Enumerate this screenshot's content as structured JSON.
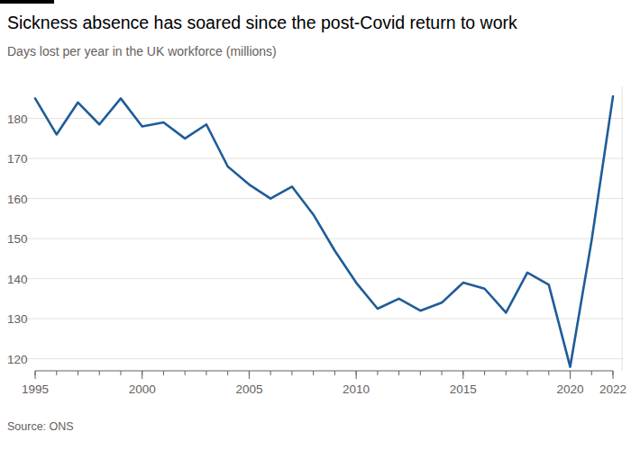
{
  "chart_data": {
    "type": "line",
    "title": "Sickness absence has soared since the post-Covid return to work",
    "subtitle": "Days lost per year in the UK workforce (millions)",
    "source": "Source: ONS",
    "x": [
      1995,
      1996,
      1997,
      1998,
      1999,
      2000,
      2001,
      2002,
      2003,
      2004,
      2005,
      2006,
      2007,
      2008,
      2009,
      2010,
      2011,
      2012,
      2013,
      2014,
      2015,
      2016,
      2017,
      2018,
      2019,
      2020,
      2021,
      2022
    ],
    "series": [
      {
        "name": "Days lost",
        "color": "#1f5c99",
        "values": [
          185,
          176,
          184,
          178.5,
          185,
          178,
          179,
          175,
          178.5,
          168,
          163.5,
          160,
          163,
          156,
          147,
          139,
          132.5,
          135,
          132,
          134,
          139,
          137.5,
          131.5,
          141.5,
          138.5,
          118,
          149.5,
          185.5
        ]
      }
    ],
    "xlim": [
      1995,
      2022
    ],
    "xticks": [
      1995,
      2000,
      2005,
      2010,
      2015,
      2020,
      2022
    ],
    "ylim": [
      117,
      188
    ],
    "yticks": [
      120,
      130,
      140,
      150,
      160,
      170,
      180
    ],
    "grid": true
  }
}
